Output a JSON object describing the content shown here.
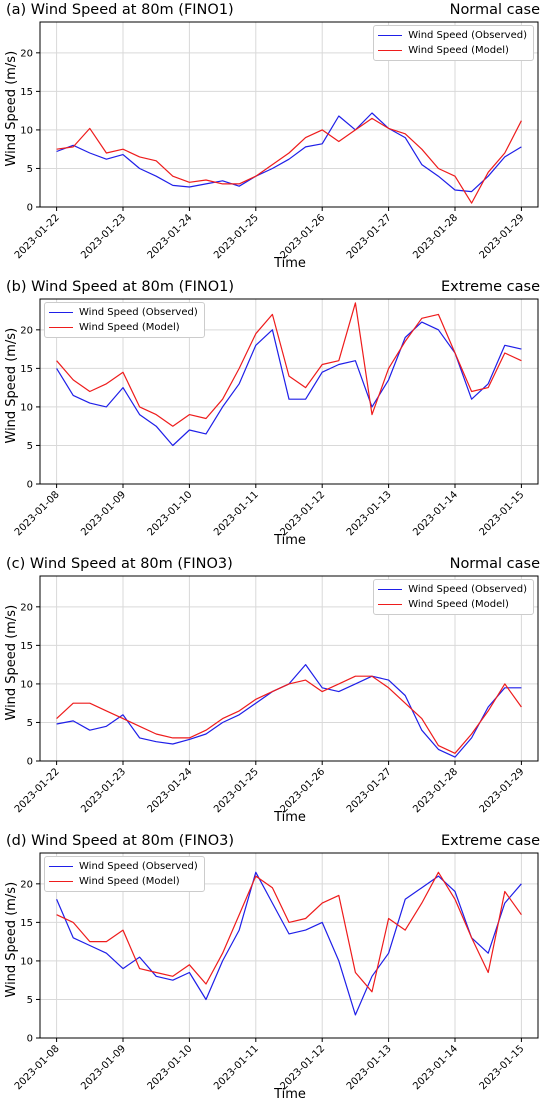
{
  "colors": {
    "observed": "#1f1fe8",
    "model": "#ee1c1c",
    "grid": "#d9d9d9"
  },
  "chart_data": [
    {
      "type": "line",
      "title": "(a) Wind Speed at 80m (FINO1)",
      "case_label": "Normal case",
      "xlabel": "Time",
      "ylabel": "Wind Speed (m/s)",
      "ylim": [
        0,
        24
      ],
      "yticks": [
        0,
        5,
        10,
        15,
        20
      ],
      "xlim": [
        "2023-01-21T18:00",
        "2023-01-29T06:00"
      ],
      "xticks": [
        "2023-01-22",
        "2023-01-23",
        "2023-01-24",
        "2023-01-25",
        "2023-01-26",
        "2023-01-27",
        "2023-01-28",
        "2023-01-29"
      ],
      "grid": true,
      "legend": "top-right",
      "series": [
        {
          "name": "Wind Speed (Observed)",
          "color": "observed",
          "x": [
            "2023-01-22T00:00",
            "2023-01-22T06:00",
            "2023-01-22T12:00",
            "2023-01-22T18:00",
            "2023-01-23T00:00",
            "2023-01-23T06:00",
            "2023-01-23T12:00",
            "2023-01-23T18:00",
            "2023-01-24T00:00",
            "2023-01-24T06:00",
            "2023-01-24T12:00",
            "2023-01-24T18:00",
            "2023-01-25T00:00",
            "2023-01-25T06:00",
            "2023-01-25T12:00",
            "2023-01-25T18:00",
            "2023-01-26T00:00",
            "2023-01-26T06:00",
            "2023-01-26T12:00",
            "2023-01-26T18:00",
            "2023-01-27T00:00",
            "2023-01-27T06:00",
            "2023-01-27T12:00",
            "2023-01-27T18:00",
            "2023-01-28T00:00",
            "2023-01-28T06:00",
            "2023-01-28T12:00",
            "2023-01-28T18:00",
            "2023-01-29T00:00"
          ],
          "y": [
            7.2,
            8.0,
            7.0,
            6.2,
            6.8,
            5.0,
            4.0,
            2.8,
            2.6,
            3.0,
            3.4,
            2.7,
            4.0,
            5.0,
            6.2,
            7.8,
            8.2,
            11.8,
            10.0,
            12.2,
            10.2,
            9.0,
            5.5,
            4.0,
            2.2,
            2.0,
            4.0,
            6.5,
            7.8
          ]
        },
        {
          "name": "Wind Speed (Model)",
          "color": "model",
          "x": [
            "2023-01-22T00:00",
            "2023-01-22T06:00",
            "2023-01-22T12:00",
            "2023-01-22T18:00",
            "2023-01-23T00:00",
            "2023-01-23T06:00",
            "2023-01-23T12:00",
            "2023-01-23T18:00",
            "2023-01-24T00:00",
            "2023-01-24T06:00",
            "2023-01-24T12:00",
            "2023-01-24T18:00",
            "2023-01-25T00:00",
            "2023-01-25T06:00",
            "2023-01-25T12:00",
            "2023-01-25T18:00",
            "2023-01-26T00:00",
            "2023-01-26T06:00",
            "2023-01-26T12:00",
            "2023-01-26T18:00",
            "2023-01-27T00:00",
            "2023-01-27T06:00",
            "2023-01-27T12:00",
            "2023-01-27T18:00",
            "2023-01-28T00:00",
            "2023-01-28T06:00",
            "2023-01-28T12:00",
            "2023-01-28T18:00",
            "2023-01-29T00:00"
          ],
          "y": [
            7.5,
            7.8,
            10.2,
            7.0,
            7.5,
            6.5,
            6.0,
            4.0,
            3.2,
            3.5,
            3.0,
            3.0,
            4.0,
            5.5,
            7.0,
            9.0,
            10.0,
            8.5,
            10.0,
            11.5,
            10.2,
            9.5,
            7.5,
            5.0,
            4.0,
            0.5,
            4.5,
            7.0,
            11.2
          ]
        }
      ]
    },
    {
      "type": "line",
      "title": "(b) Wind Speed at 80m (FINO1)",
      "case_label": "Extreme case",
      "xlabel": "Time",
      "ylabel": "Wind Speed (m/s)",
      "ylim": [
        0,
        24
      ],
      "yticks": [
        0,
        5,
        10,
        15,
        20
      ],
      "xlim": [
        "2023-01-07T18:00",
        "2023-01-15T06:00"
      ],
      "xticks": [
        "2023-01-08",
        "2023-01-09",
        "2023-01-10",
        "2023-01-11",
        "2023-01-12",
        "2023-01-13",
        "2023-01-14",
        "2023-01-15"
      ],
      "grid": true,
      "legend": "top-left",
      "series": [
        {
          "name": "Wind Speed (Observed)",
          "color": "observed",
          "x": [
            "2023-01-08T00:00",
            "2023-01-08T06:00",
            "2023-01-08T12:00",
            "2023-01-08T18:00",
            "2023-01-09T00:00",
            "2023-01-09T06:00",
            "2023-01-09T12:00",
            "2023-01-09T18:00",
            "2023-01-10T00:00",
            "2023-01-10T06:00",
            "2023-01-10T12:00",
            "2023-01-10T18:00",
            "2023-01-11T00:00",
            "2023-01-11T06:00",
            "2023-01-11T12:00",
            "2023-01-11T18:00",
            "2023-01-12T00:00",
            "2023-01-12T06:00",
            "2023-01-12T12:00",
            "2023-01-12T18:00",
            "2023-01-13T00:00",
            "2023-01-13T06:00",
            "2023-01-13T12:00",
            "2023-01-13T18:00",
            "2023-01-14T00:00",
            "2023-01-14T06:00",
            "2023-01-14T12:00",
            "2023-01-14T18:00",
            "2023-01-15T00:00"
          ],
          "y": [
            15.0,
            11.5,
            10.5,
            10.0,
            12.5,
            9.0,
            7.5,
            5.0,
            7.0,
            6.5,
            10.0,
            13.0,
            18.0,
            20.0,
            11.0,
            11.0,
            14.5,
            15.5,
            16.0,
            10.0,
            13.5,
            19.0,
            21.0,
            20.0,
            17.0,
            11.0,
            13.0,
            18.0,
            17.5
          ]
        },
        {
          "name": "Wind Speed (Model)",
          "color": "model",
          "x": [
            "2023-01-08T00:00",
            "2023-01-08T06:00",
            "2023-01-08T12:00",
            "2023-01-08T18:00",
            "2023-01-09T00:00",
            "2023-01-09T06:00",
            "2023-01-09T12:00",
            "2023-01-09T18:00",
            "2023-01-10T00:00",
            "2023-01-10T06:00",
            "2023-01-10T12:00",
            "2023-01-10T18:00",
            "2023-01-11T00:00",
            "2023-01-11T06:00",
            "2023-01-11T12:00",
            "2023-01-11T18:00",
            "2023-01-12T00:00",
            "2023-01-12T06:00",
            "2023-01-12T12:00",
            "2023-01-12T18:00",
            "2023-01-13T00:00",
            "2023-01-13T06:00",
            "2023-01-13T12:00",
            "2023-01-13T18:00",
            "2023-01-14T00:00",
            "2023-01-14T06:00",
            "2023-01-14T12:00",
            "2023-01-14T18:00",
            "2023-01-15T00:00"
          ],
          "y": [
            16.0,
            13.5,
            12.0,
            13.0,
            14.5,
            10.0,
            9.0,
            7.5,
            9.0,
            8.5,
            11.0,
            15.0,
            19.5,
            22.0,
            14.0,
            12.5,
            15.5,
            16.0,
            23.5,
            9.0,
            15.0,
            18.5,
            21.5,
            22.0,
            17.0,
            12.0,
            12.5,
            17.0,
            16.0
          ]
        }
      ]
    },
    {
      "type": "line",
      "title": "(c) Wind Speed at 80m (FINO3)",
      "case_label": "Normal case",
      "xlabel": "Time",
      "ylabel": "Wind Speed (m/s)",
      "ylim": [
        0,
        24
      ],
      "yticks": [
        0,
        5,
        10,
        15,
        20
      ],
      "xlim": [
        "2023-01-21T18:00",
        "2023-01-29T06:00"
      ],
      "xticks": [
        "2023-01-22",
        "2023-01-23",
        "2023-01-24",
        "2023-01-25",
        "2023-01-26",
        "2023-01-27",
        "2023-01-28",
        "2023-01-29"
      ],
      "grid": true,
      "legend": "top-right",
      "series": [
        {
          "name": "Wind Speed (Observed)",
          "color": "observed",
          "x": [
            "2023-01-22T00:00",
            "2023-01-22T06:00",
            "2023-01-22T12:00",
            "2023-01-22T18:00",
            "2023-01-23T00:00",
            "2023-01-23T06:00",
            "2023-01-23T12:00",
            "2023-01-23T18:00",
            "2023-01-24T00:00",
            "2023-01-24T06:00",
            "2023-01-24T12:00",
            "2023-01-24T18:00",
            "2023-01-25T00:00",
            "2023-01-25T06:00",
            "2023-01-25T12:00",
            "2023-01-25T18:00",
            "2023-01-26T00:00",
            "2023-01-26T06:00",
            "2023-01-26T12:00",
            "2023-01-26T18:00",
            "2023-01-27T00:00",
            "2023-01-27T06:00",
            "2023-01-27T12:00",
            "2023-01-27T18:00",
            "2023-01-28T00:00",
            "2023-01-28T06:00",
            "2023-01-28T12:00",
            "2023-01-28T18:00",
            "2023-01-29T00:00"
          ],
          "y": [
            4.8,
            5.2,
            4.0,
            4.5,
            6.0,
            3.0,
            2.5,
            2.2,
            2.8,
            3.5,
            5.0,
            6.0,
            7.5,
            9.0,
            10.0,
            12.5,
            9.5,
            9.0,
            10.0,
            11.0,
            10.5,
            8.5,
            4.0,
            1.5,
            0.5,
            3.0,
            7.0,
            9.5,
            9.5
          ]
        },
        {
          "name": "Wind Speed (Model)",
          "color": "model",
          "x": [
            "2023-01-22T00:00",
            "2023-01-22T06:00",
            "2023-01-22T12:00",
            "2023-01-22T18:00",
            "2023-01-23T00:00",
            "2023-01-23T06:00",
            "2023-01-23T12:00",
            "2023-01-23T18:00",
            "2023-01-24T00:00",
            "2023-01-24T06:00",
            "2023-01-24T12:00",
            "2023-01-24T18:00",
            "2023-01-25T00:00",
            "2023-01-25T06:00",
            "2023-01-25T12:00",
            "2023-01-25T18:00",
            "2023-01-26T00:00",
            "2023-01-26T06:00",
            "2023-01-26T12:00",
            "2023-01-26T18:00",
            "2023-01-27T00:00",
            "2023-01-27T06:00",
            "2023-01-27T12:00",
            "2023-01-27T18:00",
            "2023-01-28T00:00",
            "2023-01-28T06:00",
            "2023-01-28T12:00",
            "2023-01-28T18:00",
            "2023-01-29T00:00"
          ],
          "y": [
            5.5,
            7.5,
            7.5,
            6.5,
            5.5,
            4.5,
            3.5,
            3.0,
            3.0,
            4.0,
            5.5,
            6.5,
            8.0,
            9.0,
            10.0,
            10.5,
            9.0,
            10.0,
            11.0,
            11.0,
            9.5,
            7.5,
            5.5,
            2.0,
            1.0,
            3.5,
            6.5,
            10.0,
            7.0
          ]
        }
      ]
    },
    {
      "type": "line",
      "title": "(d) Wind Speed at 80m (FINO3)",
      "case_label": "Extreme case",
      "xlabel": "Time",
      "ylabel": "Wind Speed (m/s)",
      "ylim": [
        0,
        24
      ],
      "yticks": [
        0,
        5,
        10,
        15,
        20
      ],
      "xlim": [
        "2023-01-07T18:00",
        "2023-01-15T06:00"
      ],
      "xticks": [
        "2023-01-08",
        "2023-01-09",
        "2023-01-10",
        "2023-01-11",
        "2023-01-12",
        "2023-01-13",
        "2023-01-14",
        "2023-01-15"
      ],
      "grid": true,
      "legend": "top-left",
      "series": [
        {
          "name": "Wind Speed (Observed)",
          "color": "observed",
          "x": [
            "2023-01-08T00:00",
            "2023-01-08T06:00",
            "2023-01-08T12:00",
            "2023-01-08T18:00",
            "2023-01-09T00:00",
            "2023-01-09T06:00",
            "2023-01-09T12:00",
            "2023-01-09T18:00",
            "2023-01-10T00:00",
            "2023-01-10T06:00",
            "2023-01-10T12:00",
            "2023-01-10T18:00",
            "2023-01-11T00:00",
            "2023-01-11T06:00",
            "2023-01-11T12:00",
            "2023-01-11T18:00",
            "2023-01-12T00:00",
            "2023-01-12T06:00",
            "2023-01-12T12:00",
            "2023-01-12T18:00",
            "2023-01-13T00:00",
            "2023-01-13T06:00",
            "2023-01-13T12:00",
            "2023-01-13T18:00",
            "2023-01-14T00:00",
            "2023-01-14T06:00",
            "2023-01-14T12:00",
            "2023-01-14T18:00",
            "2023-01-15T00:00"
          ],
          "y": [
            18.0,
            13.0,
            12.0,
            11.0,
            9.0,
            10.5,
            8.0,
            7.5,
            8.5,
            5.0,
            10.0,
            14.0,
            21.5,
            17.5,
            13.5,
            14.0,
            15.0,
            10.0,
            3.0,
            8.0,
            11.0,
            18.0,
            19.5,
            21.0,
            19.0,
            13.0,
            11.0,
            17.5,
            20.0
          ]
        },
        {
          "name": "Wind Speed (Model)",
          "color": "model",
          "x": [
            "2023-01-08T00:00",
            "2023-01-08T06:00",
            "2023-01-08T12:00",
            "2023-01-08T18:00",
            "2023-01-09T00:00",
            "2023-01-09T06:00",
            "2023-01-09T12:00",
            "2023-01-09T18:00",
            "2023-01-10T00:00",
            "2023-01-10T06:00",
            "2023-01-10T12:00",
            "2023-01-10T18:00",
            "2023-01-11T00:00",
            "2023-01-11T06:00",
            "2023-01-11T12:00",
            "2023-01-11T18:00",
            "2023-01-12T00:00",
            "2023-01-12T06:00",
            "2023-01-12T12:00",
            "2023-01-12T18:00",
            "2023-01-13T00:00",
            "2023-01-13T06:00",
            "2023-01-13T12:00",
            "2023-01-13T18:00",
            "2023-01-14T00:00",
            "2023-01-14T06:00",
            "2023-01-14T12:00",
            "2023-01-14T18:00",
            "2023-01-15T00:00"
          ],
          "y": [
            16.0,
            15.0,
            12.5,
            12.5,
            14.0,
            9.0,
            8.5,
            8.0,
            9.5,
            7.0,
            11.0,
            16.0,
            21.0,
            19.5,
            15.0,
            15.5,
            17.5,
            18.5,
            8.5,
            6.0,
            15.5,
            14.0,
            17.5,
            21.5,
            18.0,
            13.0,
            8.5,
            19.0,
            16.0
          ]
        }
      ]
    }
  ]
}
